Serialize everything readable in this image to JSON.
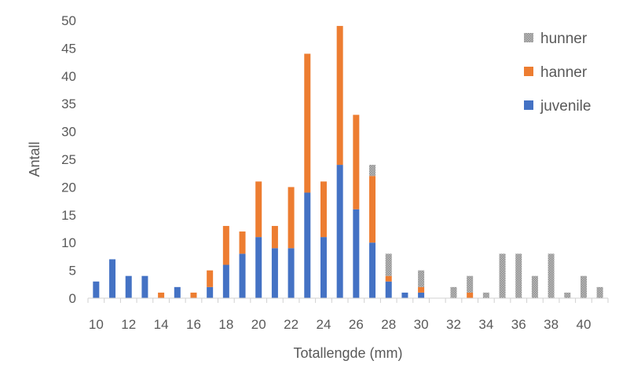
{
  "chart_data": {
    "type": "bar",
    "stacked": true,
    "xlabel": "Totallengde (mm)",
    "ylabel": "Antall",
    "ylim": [
      0,
      50
    ],
    "yticks": [
      0,
      5,
      10,
      15,
      20,
      25,
      30,
      35,
      40,
      45,
      50
    ],
    "x": [
      10,
      11,
      12,
      13,
      14,
      15,
      16,
      17,
      18,
      19,
      20,
      21,
      22,
      23,
      24,
      25,
      26,
      27,
      28,
      29,
      30,
      31,
      32,
      33,
      34,
      35,
      36,
      37,
      38,
      39,
      40,
      41
    ],
    "xtick_labels": [
      "10",
      "12",
      "14",
      "16",
      "18",
      "20",
      "22",
      "24",
      "26",
      "28",
      "30",
      "32",
      "34",
      "36",
      "38",
      "40"
    ],
    "legend_position": "top-right",
    "series": [
      {
        "name": "juvenile",
        "color": "#4472C4",
        "values": [
          3,
          7,
          4,
          4,
          0,
          2,
          0,
          2,
          6,
          8,
          11,
          9,
          9,
          19,
          11,
          24,
          16,
          10,
          3,
          1,
          1,
          0,
          0,
          0,
          0,
          0,
          0,
          0,
          0,
          0,
          0,
          0
        ]
      },
      {
        "name": "hanner",
        "color": "#ED7D31",
        "values": [
          0,
          0,
          0,
          0,
          1,
          0,
          1,
          3,
          7,
          4,
          10,
          4,
          11,
          25,
          10,
          25,
          17,
          12,
          1,
          0,
          1,
          0,
          0,
          1,
          0,
          0,
          0,
          0,
          0,
          0,
          0,
          0
        ]
      },
      {
        "name": "hunner",
        "color": "#A5A5A5",
        "values": [
          0,
          0,
          0,
          0,
          0,
          0,
          0,
          0,
          0,
          0,
          0,
          0,
          0,
          0,
          0,
          0,
          0,
          2,
          4,
          0,
          3,
          0,
          2,
          3,
          1,
          8,
          8,
          4,
          8,
          1,
          4,
          2
        ]
      }
    ],
    "grid": false
  }
}
